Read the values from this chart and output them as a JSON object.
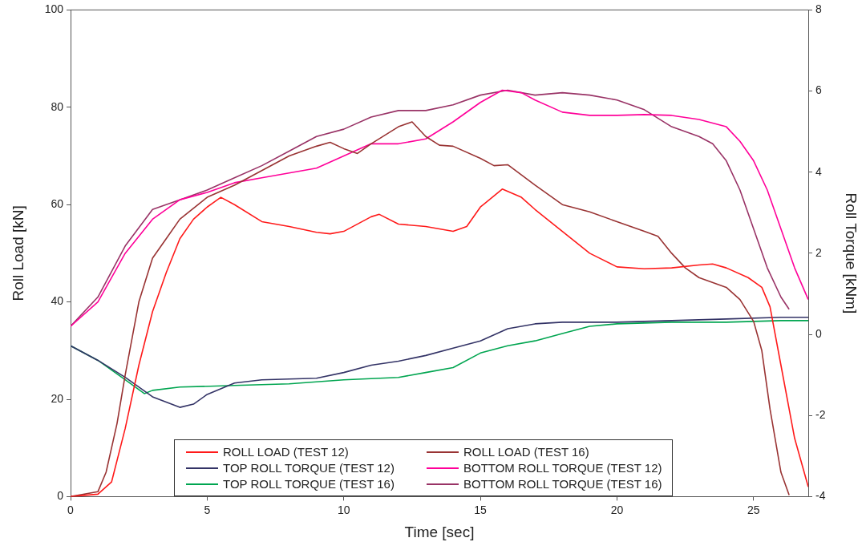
{
  "chart_data": {
    "type": "line",
    "xlabel": "Time [sec]",
    "ylabel": "Roll Load [kN]",
    "y2label": "Roll Torque [kNm]",
    "xlim": [
      0,
      27
    ],
    "xticks": [
      0,
      5,
      10,
      15,
      20,
      25
    ],
    "ylim": [
      0,
      100
    ],
    "yticks": [
      0,
      20,
      40,
      60,
      80,
      100
    ],
    "y2lim": [
      -4,
      8
    ],
    "y2ticks": [
      -4,
      -2,
      0,
      2,
      4,
      6,
      8
    ],
    "grid": false,
    "legend": "bottom",
    "marker": "none",
    "line_style": "solid",
    "series": [
      {
        "name": "ROLL LOAD (TEST 12)",
        "color": "#ff1a1a",
        "x": [
          0,
          1,
          1.5,
          2,
          2.5,
          3,
          3.5,
          4,
          4.5,
          5,
          5.5,
          6,
          7,
          8,
          9,
          9.5,
          10,
          11,
          11.3,
          12,
          13,
          14,
          14.5,
          15,
          15.8,
          16.5,
          17,
          18,
          19,
          20,
          21,
          22,
          23,
          23.5,
          24,
          24.8,
          25.3,
          25.6,
          26,
          26.5,
          27
        ],
        "values": [
          0,
          0.5,
          3,
          14,
          27,
          38,
          46,
          53,
          57,
          59.5,
          61.5,
          60,
          56.5,
          55.5,
          54.3,
          54,
          54.5,
          57.5,
          58,
          56,
          55.5,
          54.5,
          55.5,
          59.5,
          63.2,
          61.5,
          59,
          54.5,
          50,
          47.2,
          46.8,
          47,
          47.6,
          47.8,
          47,
          45,
          43,
          39,
          27,
          12,
          2
        ]
      },
      {
        "name": "ROLL LOAD (TEST 16)",
        "color": "#993333",
        "x": [
          0,
          1,
          1.3,
          1.7,
          2,
          2.5,
          3,
          3.5,
          4,
          5,
          6,
          7,
          8,
          9,
          9.5,
          10,
          10.5,
          11,
          12,
          12.5,
          13,
          13.5,
          14,
          15,
          15.5,
          16,
          17,
          18,
          19,
          20,
          21,
          21.5,
          22,
          22.5,
          23,
          24,
          24.5,
          25,
          25.3,
          25.6,
          26,
          26.3
        ],
        "values": [
          0,
          1,
          5,
          15,
          25,
          40,
          49,
          53,
          57,
          61.5,
          64,
          67,
          70,
          72,
          72.8,
          71.5,
          70.5,
          72.5,
          76,
          77,
          74,
          72.2,
          72,
          69.5,
          68,
          68.2,
          64,
          60,
          58.5,
          56.5,
          54.5,
          53.5,
          50,
          47,
          45,
          43,
          40.5,
          36,
          30,
          18,
          5,
          0.3
        ]
      },
      {
        "name": "TOP ROLL TORQUE (TEST 12)",
        "color": "#333366",
        "axis": "y2",
        "x": [
          0,
          1,
          2,
          3,
          4,
          4.5,
          5,
          6,
          7,
          8,
          9,
          10,
          11,
          12,
          13,
          14,
          15,
          16,
          17,
          18,
          20,
          22,
          24,
          26,
          27
        ],
        "values": [
          -0.28,
          -0.64,
          -1.06,
          -1.54,
          -1.8,
          -1.72,
          -1.48,
          -1.2,
          -1.12,
          -1.1,
          -1.08,
          -0.94,
          -0.76,
          -0.66,
          -0.52,
          -0.34,
          -0.16,
          0.14,
          0.26,
          0.3,
          0.3,
          0.34,
          0.38,
          0.42,
          0.42
        ]
      },
      {
        "name": "BOTTOM ROLL TORQUE (TEST 12)",
        "color": "#ff0099",
        "axis": "y2",
        "x": [
          0,
          1,
          2,
          3,
          4,
          5,
          6,
          7,
          8,
          9,
          10,
          11,
          12,
          13,
          14,
          15,
          15.8,
          16.5,
          17,
          18,
          19,
          20,
          21,
          22,
          23,
          24,
          24.5,
          25,
          25.5,
          26,
          26.5,
          27
        ],
        "values": [
          0.2,
          0.8,
          2,
          2.84,
          3.32,
          3.5,
          3.74,
          3.86,
          3.98,
          4.1,
          4.4,
          4.7,
          4.7,
          4.82,
          5.24,
          5.72,
          6.02,
          5.96,
          5.78,
          5.48,
          5.4,
          5.4,
          5.42,
          5.4,
          5.3,
          5.12,
          4.76,
          4.28,
          3.56,
          2.6,
          1.64,
          0.86
        ]
      },
      {
        "name": "TOP ROLL TORQUE (TEST 16)",
        "color": "#00a550",
        "axis": "y2",
        "x": [
          0,
          1,
          2,
          2.7,
          3,
          4,
          6,
          8,
          10,
          12,
          13,
          14,
          15,
          16,
          17,
          18,
          19,
          20,
          22,
          24,
          26,
          27
        ],
        "values": [
          -0.28,
          -0.64,
          -1.12,
          -1.46,
          -1.38,
          -1.3,
          -1.26,
          -1.22,
          -1.12,
          -1.06,
          -0.94,
          -0.82,
          -0.46,
          -0.28,
          -0.16,
          0.02,
          0.2,
          0.26,
          0.3,
          0.3,
          0.34,
          0.34
        ]
      },
      {
        "name": "BOTTOM ROLL TORQUE (TEST 16)",
        "color": "#993366",
        "axis": "y2",
        "x": [
          0,
          1,
          2,
          3,
          4,
          5,
          6,
          7,
          8,
          9,
          10,
          11,
          12,
          13,
          14,
          15,
          16,
          17,
          18,
          19,
          20,
          21,
          22,
          23,
          23.5,
          24,
          24.5,
          25,
          25.5,
          26,
          26.3
        ],
        "values": [
          0.2,
          0.92,
          2.18,
          3.08,
          3.32,
          3.56,
          3.86,
          4.16,
          4.52,
          4.88,
          5.06,
          5.36,
          5.52,
          5.52,
          5.66,
          5.9,
          6.02,
          5.9,
          5.96,
          5.9,
          5.78,
          5.54,
          5.12,
          4.88,
          4.7,
          4.28,
          3.56,
          2.6,
          1.64,
          0.92,
          0.62
        ]
      }
    ]
  }
}
